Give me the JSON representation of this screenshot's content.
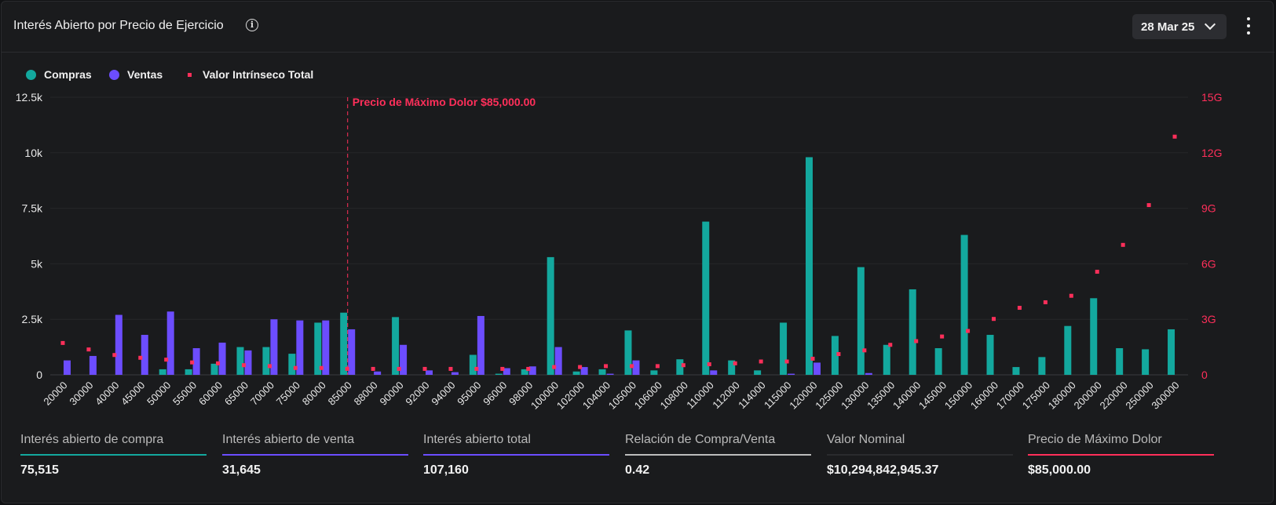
{
  "header": {
    "title": "Interés Abierto por Precio de Ejercicio",
    "info_icon": "i",
    "date_label": "28 Mar 25"
  },
  "legend": [
    {
      "label": "Compras",
      "color": "#13a89e",
      "shape": "circle"
    },
    {
      "label": "Ventas",
      "color": "#6c4dff",
      "shape": "circle"
    },
    {
      "label": "Valor Intrínseco Total",
      "color": "#ff2f5a",
      "shape": "square"
    }
  ],
  "chart_data": {
    "type": "bar",
    "categories": [
      "20000",
      "30000",
      "40000",
      "45000",
      "50000",
      "55000",
      "60000",
      "65000",
      "70000",
      "75000",
      "80000",
      "85000",
      "88000",
      "90000",
      "92000",
      "94000",
      "95000",
      "96000",
      "98000",
      "100000",
      "102000",
      "104000",
      "105000",
      "106000",
      "108000",
      "110000",
      "112000",
      "114000",
      "115000",
      "120000",
      "125000",
      "130000",
      "135000",
      "140000",
      "145000",
      "150000",
      "160000",
      "170000",
      "175000",
      "180000",
      "200000",
      "220000",
      "250000",
      "300000"
    ],
    "series": [
      {
        "name": "Compras",
        "axis": "left",
        "color": "#13a89e",
        "values": [
          0,
          0,
          0,
          0,
          250,
          250,
          500,
          1250,
          1250,
          950,
          2350,
          2800,
          0,
          2600,
          0,
          0,
          900,
          50,
          250,
          5300,
          150,
          250,
          2000,
          200,
          700,
          6900,
          650,
          200,
          2350,
          9800,
          1750,
          4850,
          1350,
          3850,
          1200,
          6300,
          1800,
          350,
          800,
          2200,
          3450,
          1200,
          1150,
          2050
        ]
      },
      {
        "name": "Ventas",
        "axis": "left",
        "color": "#6c4dff",
        "values": [
          650,
          850,
          2700,
          1800,
          2850,
          1200,
          1450,
          1100,
          2500,
          2450,
          2450,
          2050,
          150,
          1350,
          200,
          120,
          2650,
          300,
          380,
          1250,
          350,
          50,
          650,
          0,
          0,
          200,
          0,
          0,
          50,
          550,
          0,
          80,
          0,
          0,
          0,
          0,
          0,
          0,
          0,
          0,
          0,
          0,
          0,
          0
        ]
      },
      {
        "name": "Valor Intrínseco Total",
        "axis": "right",
        "color": "#ff2f5a",
        "type": "scatter",
        "unit": "G",
        "values": [
          1.7,
          1.35,
          1.05,
          0.9,
          0.8,
          0.65,
          0.6,
          0.5,
          0.45,
          0.35,
          0.35,
          0.3,
          0.3,
          0.3,
          0.3,
          0.3,
          0.3,
          0.3,
          0.3,
          0.4,
          0.4,
          0.45,
          0.45,
          0.45,
          0.5,
          0.55,
          0.6,
          0.7,
          0.7,
          0.85,
          1.1,
          1.3,
          1.6,
          1.8,
          2.05,
          2.35,
          3.0,
          3.6,
          3.9,
          4.25,
          5.55,
          7.0,
          9.15,
          12.85
        ]
      }
    ],
    "y_left": {
      "min": 0,
      "max": 12500,
      "ticks": [
        0,
        2500,
        5000,
        7500,
        10000,
        12500
      ],
      "tick_labels": [
        "0",
        "2.5k",
        "5k",
        "7.5k",
        "10k",
        "12.5k"
      ]
    },
    "y_right": {
      "min": 0,
      "max": 15,
      "ticks": [
        0,
        3,
        6,
        9,
        12,
        15
      ],
      "tick_labels": [
        "0",
        "3G",
        "6G",
        "9G",
        "12G",
        "15G"
      ]
    },
    "annotation": {
      "category": "85000",
      "label": "Precio de Máximo Dolor $85,000.00",
      "color": "#ff2f5a"
    },
    "grid": true,
    "legend_position": "top-left"
  },
  "stats": [
    {
      "label": "Interés abierto de compra",
      "value": "75,515",
      "color": "#13a89e"
    },
    {
      "label": "Interés abierto de venta",
      "value": "31,645",
      "color": "#6c4dff"
    },
    {
      "label": "Interés abierto total",
      "value": "107,160",
      "color": "#6c4dff"
    },
    {
      "label": "Relación de Compra/Venta",
      "value": "0.42",
      "color": "#bdbdbd"
    },
    {
      "label": "Valor Nominal",
      "value": "$10,294,842,945.37",
      "color": "#2a2b2e"
    },
    {
      "label": "Precio de Máximo Dolor",
      "value": "$85,000.00",
      "color": "#ff2f5a"
    }
  ]
}
